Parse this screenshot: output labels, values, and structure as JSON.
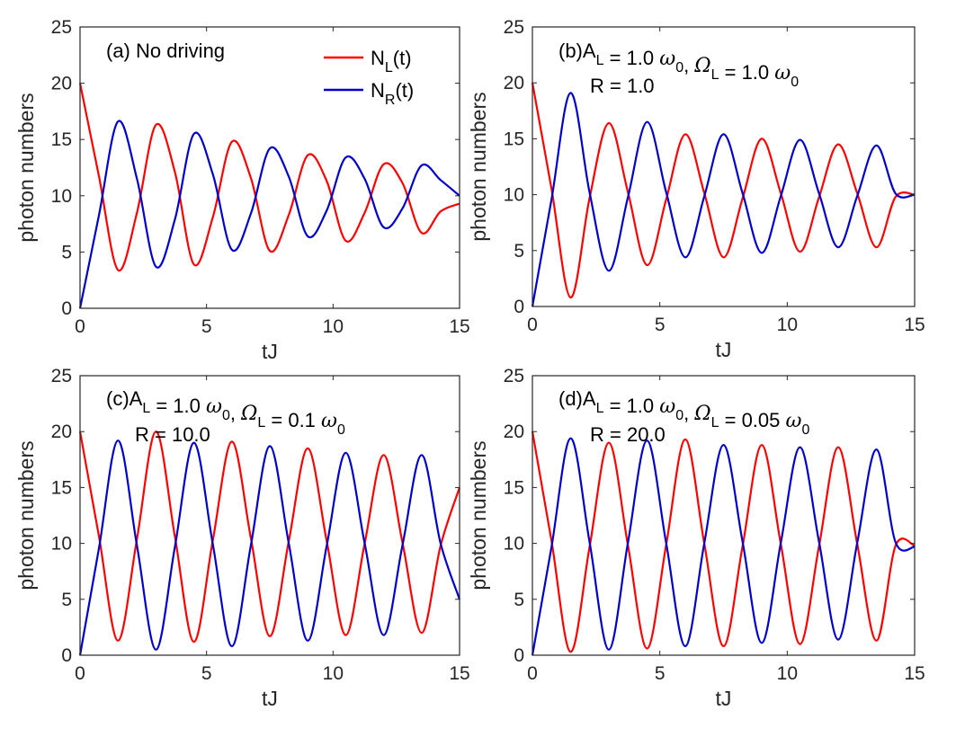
{
  "colors": {
    "NL": "#ff0000",
    "NR": "#0000cc"
  },
  "legend": [
    {
      "main": "N",
      "sub": "L",
      "tail": "(t)",
      "color": "#ff0000"
    },
    {
      "main": "N",
      "sub": "R",
      "tail": "(t)",
      "color": "#0000cc"
    }
  ],
  "chart_data": [
    {
      "type": "line",
      "panel": "a",
      "annotation": [
        {
          "text": "(a) No driving"
        }
      ],
      "xlabel": "tJ",
      "ylabel": "photon numbers",
      "xlim": [
        0,
        15
      ],
      "ylim": [
        0,
        25
      ],
      "xticks": [
        0,
        5,
        10,
        15
      ],
      "yticks": [
        0,
        5,
        10,
        15,
        20,
        25
      ],
      "x": [
        0,
        0.75,
        1.5,
        2.25,
        3,
        3.75,
        4.5,
        5.25,
        6,
        6.75,
        7.5,
        8.25,
        9,
        9.75,
        10.5,
        11.25,
        12,
        12.75,
        13.5,
        14.25,
        15
      ],
      "series": [
        {
          "name": "N_L(t)",
          "color": "#ff0000",
          "values": [
            20.0,
            11.7,
            3.4,
            8.5,
            16.3,
            12.1,
            3.9,
            8.1,
            14.8,
            11.6,
            5.1,
            8.3,
            13.6,
            11.3,
            6.0,
            8.5,
            12.8,
            11.1,
            6.7,
            8.6,
            9.3
          ]
        },
        {
          "name": "N_R(t)",
          "color": "#0000cc",
          "values": [
            0.0,
            8.3,
            16.6,
            11.5,
            3.7,
            7.9,
            15.5,
            11.9,
            5.2,
            8.4,
            14.2,
            11.7,
            6.4,
            8.7,
            13.4,
            11.5,
            7.2,
            8.9,
            12.7,
            11.4,
            10.0
          ]
        }
      ]
    },
    {
      "type": "line",
      "panel": "b",
      "annotation": [
        {
          "text": "(b)A_L = 1.0 ω_0, Ω_L = 1.0 ω_0"
        },
        {
          "text": "R = 1.0"
        }
      ],
      "xlabel": "tJ",
      "ylabel": "photon numbers",
      "xlim": [
        0,
        15
      ],
      "ylim": [
        0,
        25
      ],
      "xticks": [
        0,
        5,
        10,
        15
      ],
      "yticks": [
        0,
        5,
        10,
        15,
        20,
        25
      ],
      "x": [
        0,
        0.75,
        1.5,
        2.25,
        3,
        3.75,
        4.5,
        5.25,
        6,
        6.75,
        7.5,
        8.25,
        9,
        9.75,
        10.5,
        11.25,
        12,
        12.75,
        13.5,
        14.25,
        15
      ],
      "series": [
        {
          "name": "N_L(t)",
          "color": "#ff0000",
          "values": [
            20.0,
            10.5,
            0.8,
            9.8,
            16.4,
            10.2,
            3.7,
            9.6,
            15.4,
            10.1,
            4.4,
            9.7,
            15.0,
            10.1,
            4.9,
            9.8,
            14.5,
            10.1,
            5.3,
            9.8,
            10.0
          ]
        },
        {
          "name": "N_R(t)",
          "color": "#0000cc",
          "values": [
            0.0,
            9.6,
            19.1,
            10.1,
            3.2,
            9.8,
            16.5,
            10.2,
            4.4,
            9.9,
            15.4,
            10.1,
            4.8,
            9.9,
            14.9,
            10.1,
            5.3,
            9.9,
            14.4,
            10.1,
            10.0
          ]
        }
      ]
    },
    {
      "type": "line",
      "panel": "c",
      "annotation": [
        {
          "text": "(c)A_L = 1.0 ω_0, Ω_L = 0.1 ω_0"
        },
        {
          "text": "R = 10.0"
        }
      ],
      "xlabel": "tJ",
      "ylabel": "photon numbers",
      "xlim": [
        0,
        15
      ],
      "ylim": [
        0,
        25
      ],
      "xticks": [
        0,
        5,
        10,
        15
      ],
      "yticks": [
        0,
        5,
        10,
        15,
        20,
        25
      ],
      "x": [
        0,
        0.75,
        1.5,
        2.25,
        3,
        3.75,
        4.5,
        5.25,
        6,
        6.75,
        7.5,
        8.25,
        9,
        9.75,
        10.5,
        11.25,
        12,
        12.75,
        13.5,
        14.25,
        15
      ],
      "series": [
        {
          "name": "N_L(t)",
          "color": "#ff0000",
          "values": [
            20.0,
            10.6,
            1.3,
            10.4,
            20.0,
            10.6,
            1.2,
            10.3,
            19.1,
            10.5,
            1.7,
            10.2,
            18.5,
            10.2,
            1.8,
            10.0,
            17.9,
            10.0,
            2.0,
            9.8,
            15.0
          ]
        },
        {
          "name": "N_R(t)",
          "color": "#0000cc",
          "values": [
            0.0,
            9.6,
            19.2,
            9.8,
            0.5,
            9.7,
            19.0,
            9.9,
            0.8,
            9.8,
            18.7,
            10.0,
            1.3,
            9.8,
            18.1,
            10.0,
            1.8,
            9.9,
            17.9,
            10.0,
            5.0
          ]
        }
      ]
    },
    {
      "type": "line",
      "panel": "d",
      "annotation": [
        {
          "text": "(d)A_L = 1.0 ω_0, Ω_L = 0.05 ω_0"
        },
        {
          "text": "R = 20.0"
        }
      ],
      "xlabel": "tJ",
      "ylabel": "photon numbers",
      "xlim": [
        0,
        15
      ],
      "ylim": [
        0,
        25
      ],
      "xticks": [
        0,
        5,
        10,
        15
      ],
      "yticks": [
        0,
        5,
        10,
        15,
        20,
        25
      ],
      "x": [
        0,
        0.75,
        1.5,
        2.25,
        3,
        3.75,
        4.5,
        5.25,
        6,
        6.75,
        7.5,
        8.25,
        9,
        9.75,
        10.5,
        11.25,
        12,
        12.75,
        13.5,
        14.25,
        15
      ],
      "series": [
        {
          "name": "N_L(t)",
          "color": "#ff0000",
          "values": [
            20.0,
            10.2,
            0.3,
            9.8,
            19.0,
            9.8,
            0.6,
            9.9,
            19.3,
            9.9,
            0.8,
            9.8,
            18.8,
            9.9,
            1.0,
            9.8,
            18.6,
            9.9,
            1.3,
            9.8,
            9.8
          ]
        },
        {
          "name": "N_R(t)",
          "color": "#0000cc",
          "values": [
            0.0,
            9.7,
            19.4,
            10.0,
            0.5,
            10.1,
            19.2,
            10.0,
            0.8,
            10.1,
            18.8,
            10.1,
            1.1,
            10.1,
            18.6,
            10.1,
            1.4,
            10.1,
            18.4,
            10.1,
            9.7
          ]
        }
      ]
    }
  ]
}
